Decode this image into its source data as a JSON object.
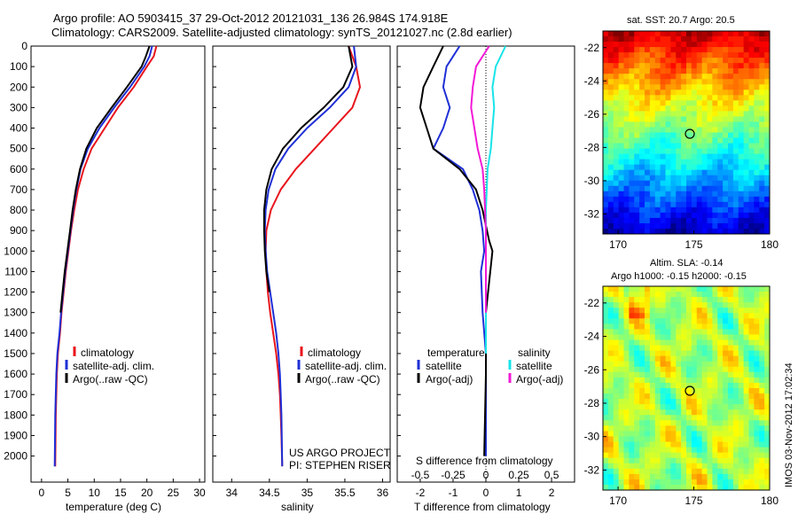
{
  "header": {
    "line1": "Argo profile: AO 5903415_37 29-Oct-2012 20121031_136 26.984S 174.918E",
    "line2": "Climatology: CARS2009. Satellite-adjusted climatology: synTS_20121027.nc (2.8d earlier)"
  },
  "side_label": "IMOS 03-Nov-2012 17:02:34",
  "colors": {
    "climatology": "#e8141c",
    "satellite": "#1f2fd6",
    "argo": "#000000",
    "sal_satellite": "#18e4e8",
    "sal_argo": "#f218d6"
  },
  "panels": {
    "temperature": {
      "xlabel": "temperature (deg C)",
      "xticks": [
        "0",
        "5",
        "10",
        "15",
        "20",
        "25",
        "30"
      ],
      "legend": [
        "climatology",
        "satellite-adj. clim.",
        "Argo(..raw -QC)"
      ]
    },
    "salinity": {
      "xlabel": "salinity",
      "xticks": [
        "34",
        "34.5",
        "35",
        "35.5",
        "36"
      ],
      "legend": [
        "climatology",
        "satellite-adj. clim.",
        "Argo(..raw -QC)"
      ],
      "note1": "US ARGO PROJECT",
      "note2": "PI: STEPHEN RISER"
    },
    "difference": {
      "xlabel": "T difference from climatology",
      "xlabel2": "S difference from climatology",
      "xticks": [
        "-2",
        "-1",
        "0",
        "1",
        "2"
      ],
      "xticks2": [
        "-0.5",
        "-0.25",
        "0",
        "0.25",
        "0.5"
      ],
      "legend_left_title": "temperature",
      "legend_right_title": "salinity",
      "legend_left": [
        "satellite",
        "Argo(-adj)"
      ],
      "legend_right": [
        "satellite",
        "Argo(-adj)"
      ]
    },
    "sst_map": {
      "title": "sat. SST: 20.7  Argo: 20.5",
      "xticks": [
        "170",
        "175",
        "180"
      ],
      "yticks": [
        "-22",
        "-24",
        "-26",
        "-28",
        "-30",
        "-32"
      ]
    },
    "sla_map": {
      "title1": "Altim. SLA: -0.14",
      "title2": "Argo h1000: -0.15 h2000: -0.15",
      "xticks": [
        "170",
        "175",
        "180"
      ],
      "yticks": [
        "-22",
        "-24",
        "-26",
        "-28",
        "-30",
        "-32"
      ]
    }
  },
  "depth_ticks": [
    "0",
    "100",
    "200",
    "300",
    "400",
    "500",
    "600",
    "700",
    "800",
    "900",
    "1000",
    "1100",
    "1200",
    "1300",
    "1400",
    "1500",
    "1600",
    "1700",
    "1800",
    "1900",
    "2000"
  ],
  "chart_data": [
    {
      "type": "line",
      "name": "temperature profile",
      "xlabel": "temperature (deg C)",
      "xlim": [
        -2,
        31
      ],
      "ylim": [
        2060,
        0
      ],
      "series": [
        {
          "name": "climatology",
          "x": [
            21.8,
            21.3,
            20.0,
            17.5,
            14.5,
            12.0,
            9.5,
            8.0,
            6.9,
            6.2,
            5.6,
            5.1,
            4.6,
            4.2,
            3.8,
            3.5,
            3.1,
            2.9,
            2.8,
            2.7,
            2.6
          ],
          "y": [
            0,
            50,
            100,
            200,
            300,
            400,
            500,
            600,
            700,
            800,
            900,
            1000,
            1100,
            1200,
            1300,
            1400,
            1500,
            1600,
            1700,
            1800,
            2050
          ]
        },
        {
          "name": "satellite-adj. clim.",
          "x": [
            21.0,
            20.5,
            19.5,
            16.8,
            13.8,
            11.0,
            8.8,
            7.4,
            6.6,
            6.0,
            5.5,
            5.0,
            4.5,
            4.1,
            3.7,
            3.4,
            3.0,
            2.8,
            2.7,
            2.6,
            2.5
          ],
          "y": [
            0,
            50,
            100,
            200,
            300,
            400,
            500,
            600,
            700,
            800,
            900,
            1000,
            1100,
            1200,
            1300,
            1400,
            1500,
            1600,
            1700,
            1800,
            2050
          ]
        },
        {
          "name": "Argo(..raw -QC)",
          "x": [
            20.5,
            19.8,
            19.0,
            16.2,
            13.3,
            10.5,
            8.5,
            7.3,
            6.5,
            5.9,
            5.4,
            4.9,
            4.4,
            4.0,
            3.6
          ],
          "y": [
            0,
            50,
            100,
            200,
            300,
            400,
            500,
            600,
            700,
            800,
            900,
            1000,
            1100,
            1200,
            1300
          ]
        }
      ]
    },
    {
      "type": "line",
      "name": "salinity profile",
      "xlabel": "salinity",
      "xlim": [
        33.75,
        36.1
      ],
      "ylim": [
        2060,
        0
      ],
      "series": [
        {
          "name": "climatology",
          "x": [
            35.55,
            35.65,
            35.7,
            35.6,
            35.35,
            35.1,
            34.85,
            34.65,
            34.52,
            34.46,
            34.45,
            34.46,
            34.48,
            34.51,
            34.55,
            34.59,
            34.62,
            34.64,
            34.65,
            34.66,
            34.67
          ],
          "y": [
            0,
            100,
            200,
            300,
            400,
            500,
            600,
            700,
            800,
            900,
            1000,
            1100,
            1200,
            1300,
            1400,
            1500,
            1600,
            1700,
            1800,
            1900,
            2050
          ]
        },
        {
          "name": "satellite-adj. clim.",
          "x": [
            35.62,
            35.65,
            35.55,
            35.3,
            35.0,
            34.75,
            34.58,
            34.49,
            34.45,
            34.44,
            34.45,
            34.47,
            34.51,
            34.55,
            34.59,
            34.62,
            34.64,
            34.65,
            34.66,
            34.67
          ],
          "y": [
            0,
            100,
            200,
            300,
            400,
            500,
            600,
            700,
            800,
            900,
            1000,
            1100,
            1200,
            1300,
            1400,
            1500,
            1600,
            1700,
            1800,
            2050
          ]
        },
        {
          "name": "Argo(..raw -QC)",
          "x": [
            35.55,
            35.6,
            35.48,
            35.22,
            34.92,
            34.68,
            34.53,
            34.46,
            34.43,
            34.43,
            34.44,
            34.46,
            34.5
          ],
          "y": [
            0,
            100,
            200,
            300,
            400,
            500,
            600,
            700,
            800,
            900,
            1000,
            1100,
            1200
          ]
        }
      ]
    },
    {
      "type": "line",
      "name": "difference from climatology",
      "xlabel": "T difference from climatology",
      "xlim": [
        -2.7,
        2.7
      ],
      "ylim": [
        2060,
        0
      ],
      "series": [
        {
          "name": "temperature satellite",
          "x": [
            -0.8,
            -1.2,
            -1.3,
            -1.1,
            -1.3,
            -1.6,
            -0.7,
            -0.4,
            -0.2,
            -0.1,
            -0.05,
            -0.15,
            -0.1,
            0,
            0,
            0
          ],
          "y": [
            0,
            100,
            200,
            300,
            400,
            500,
            600,
            700,
            800,
            900,
            1000,
            1100,
            1300,
            1500,
            1700,
            2000
          ]
        },
        {
          "name": "temperature Argo(-adj)",
          "x": [
            -1.3,
            -1.6,
            -1.9,
            -2.0,
            -1.8,
            -1.6,
            -0.8,
            -0.3,
            -0.1,
            0.1,
            0.2,
            0,
            0,
            -0.05
          ],
          "y": [
            0,
            100,
            200,
            300,
            400,
            500,
            600,
            700,
            800,
            950,
            1000,
            1300,
            1600,
            2000
          ]
        },
        {
          "name": "salinity satellite",
          "x": [
            0.6,
            0.3,
            0.2,
            0.25,
            0.2,
            0.15,
            0.05,
            0,
            0,
            0
          ],
          "y": [
            0,
            100,
            200,
            300,
            400,
            500,
            600,
            800,
            1100,
            1500
          ]
        },
        {
          "name": "salinity Argo(-adj)",
          "x": [
            0.1,
            -0.3,
            -0.4,
            -0.45,
            -0.35,
            -0.25,
            -0.1,
            -0.05,
            0,
            0
          ],
          "y": [
            0,
            100,
            200,
            300,
            400,
            500,
            600,
            700,
            900,
            1300
          ]
        }
      ]
    },
    {
      "type": "heatmap",
      "name": "sat. SST map",
      "title": "sat. SST: 20.7  Argo: 20.5",
      "xlim": [
        169,
        180
      ],
      "ylim": [
        -33.2,
        -21
      ]
    },
    {
      "type": "heatmap",
      "name": "altimetry SLA map",
      "title": "Altim. SLA: -0.14",
      "xlim": [
        169,
        180
      ],
      "ylim": [
        -33.2,
        -21
      ]
    }
  ]
}
